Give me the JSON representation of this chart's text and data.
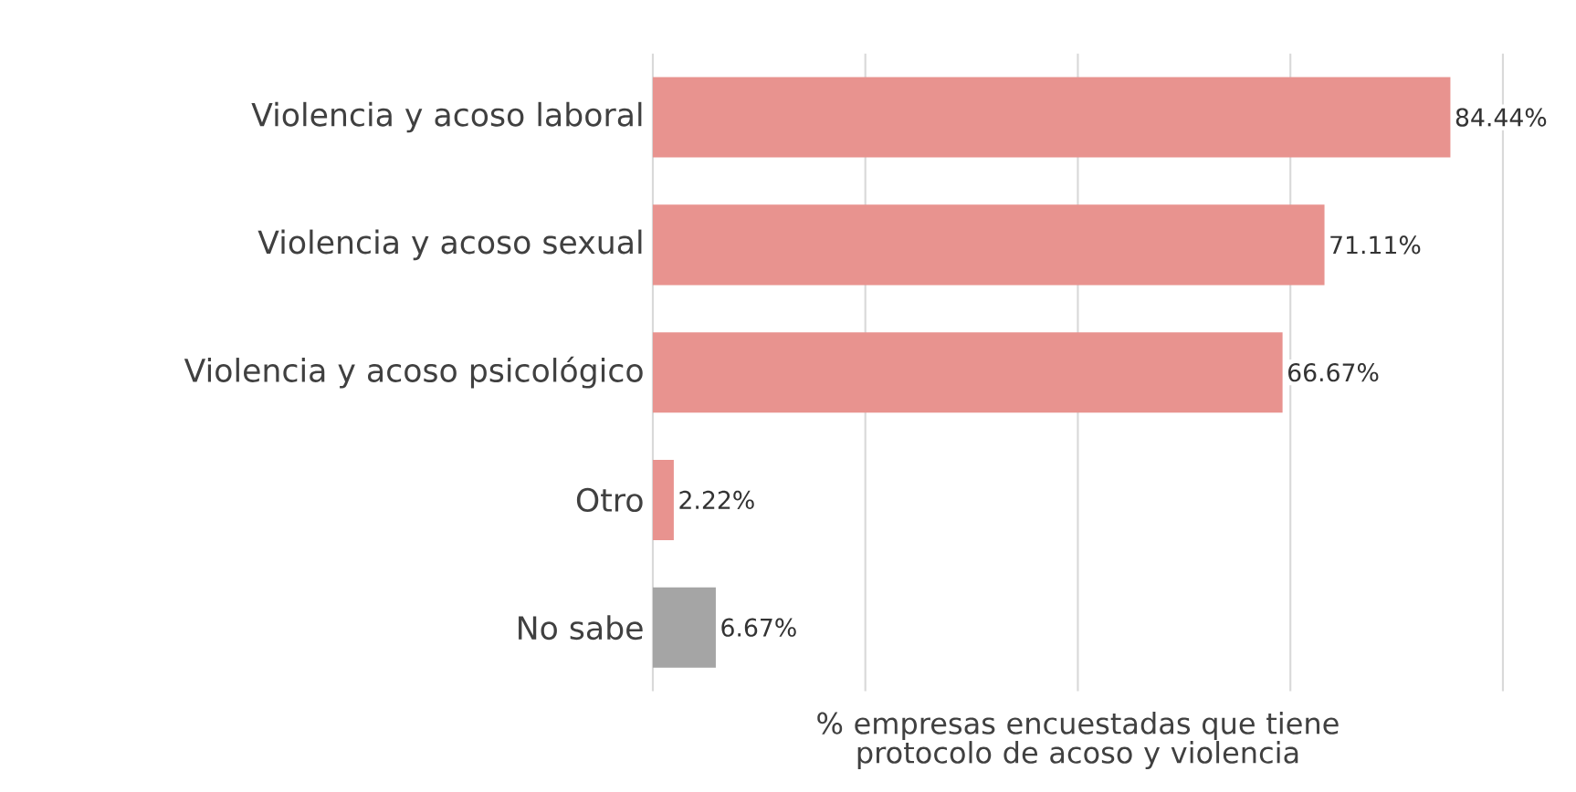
{
  "chart_data": {
    "type": "bar",
    "orientation": "horizontal",
    "categories": [
      "Violencia y acoso laboral",
      "Violencia y acoso sexual",
      "Violencia y acoso psicológico",
      "Otro",
      "No sabe"
    ],
    "values": [
      84.44,
      71.11,
      66.67,
      2.22,
      6.67
    ],
    "colors": [
      "#e8938f",
      "#e8938f",
      "#e8938f",
      "#e8938f",
      "#a5a5a5"
    ],
    "value_labels": [
      "84.44%",
      "71.11%",
      "66.67%",
      "2.22%",
      "6.67%"
    ],
    "xlabel": "% empresas encuestadas que tiene protocolo de acoso y violencia",
    "xlim": [
      0,
      90
    ],
    "xticks": [
      {
        "value": 0,
        "label": null
      },
      {
        "value": 22.5,
        "label": null
      },
      {
        "value": 45,
        "label": null
      },
      {
        "value": 67.5,
        "label": null
      },
      {
        "value": 90,
        "label": null
      }
    ],
    "tick_labels": "y",
    "grid": "x"
  }
}
